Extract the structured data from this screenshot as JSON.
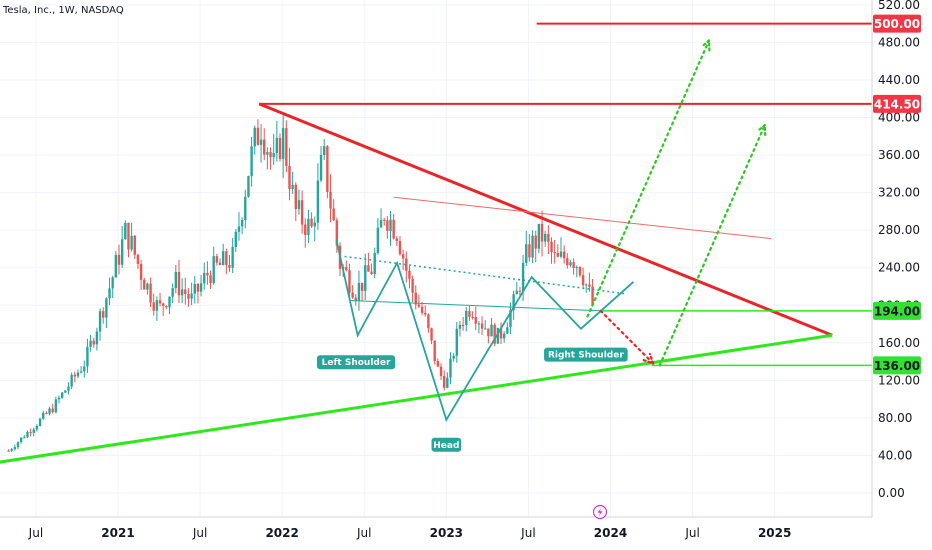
{
  "symbol_title": "Tesla, Inc., 1W, NASDAQ",
  "colors": {
    "up": "#26a69a",
    "down": "#ef5350",
    "trend_red": "#e8262a",
    "trend_green": "#2ee81c",
    "pattern_teal": "#26a69a",
    "dotted_green": "#2ec822",
    "dotted_red": "#e8262a",
    "axis_text": "#131722",
    "grid": "#f0f3fa"
  },
  "chart_data": {
    "type": "candlestick",
    "title": "Tesla, Inc., 1W, NASDAQ",
    "ylim": [
      -20,
      540
    ],
    "y_ticks": [
      "0.00",
      "40.00",
      "80.00",
      "120.00",
      "160.00",
      "200.00",
      "240.00",
      "280.00",
      "320.00",
      "360.00",
      "400.00",
      "440.00",
      "480.00",
      "520.00"
    ],
    "x_ticks": [
      "Jul",
      "2021",
      "Jul",
      "2022",
      "Jul",
      "2023",
      "Jul",
      "2024",
      "Jul",
      "2025"
    ],
    "price_badges": [
      {
        "label": "500.00",
        "value": 500,
        "color": "#e8262a"
      },
      {
        "label": "414.50",
        "value": 414.5,
        "color": "#e8262a"
      },
      {
        "label": "194.00",
        "value": 194,
        "color": "#2ee81c"
      },
      {
        "label": "136.00",
        "value": 136,
        "color": "#2ee81c"
      }
    ],
    "pattern_labels": [
      {
        "text": "Left Shoulder",
        "date": "2022.45",
        "value": 150
      },
      {
        "text": "Head",
        "date": "2023.0",
        "value": 62
      },
      {
        "text": "Right Shoulder",
        "date": "2023.85",
        "value": 158
      }
    ],
    "anchors": [
      {
        "date": 2020.333,
        "close": 45
      },
      {
        "date": 2020.6,
        "close": 90
      },
      {
        "date": 2020.8,
        "close": 140
      },
      {
        "date": 2020.95,
        "close": 220
      },
      {
        "date": 2021.05,
        "close": 280
      },
      {
        "date": 2021.15,
        "close": 230
      },
      {
        "date": 2021.25,
        "close": 195
      },
      {
        "date": 2021.35,
        "close": 225
      },
      {
        "date": 2021.45,
        "close": 205
      },
      {
        "date": 2021.55,
        "close": 235
      },
      {
        "date": 2021.7,
        "close": 250
      },
      {
        "date": 2021.8,
        "close": 350
      },
      {
        "date": 2021.87,
        "close": 395
      },
      {
        "date": 2021.95,
        "close": 345
      },
      {
        "date": 2022.0,
        "close": 385
      },
      {
        "date": 2022.08,
        "close": 300
      },
      {
        "date": 2022.18,
        "close": 280
      },
      {
        "date": 2022.25,
        "close": 360
      },
      {
        "date": 2022.35,
        "close": 245
      },
      {
        "date": 2022.45,
        "close": 215
      },
      {
        "date": 2022.55,
        "close": 240
      },
      {
        "date": 2022.62,
        "close": 300
      },
      {
        "date": 2022.7,
        "close": 280
      },
      {
        "date": 2022.78,
        "close": 220
      },
      {
        "date": 2022.87,
        "close": 185
      },
      {
        "date": 2022.95,
        "close": 130
      },
      {
        "date": 2023.0,
        "close": 115
      },
      {
        "date": 2023.08,
        "close": 180
      },
      {
        "date": 2023.15,
        "close": 200
      },
      {
        "date": 2023.22,
        "close": 180
      },
      {
        "date": 2023.32,
        "close": 165
      },
      {
        "date": 2023.42,
        "close": 205
      },
      {
        "date": 2023.5,
        "close": 260
      },
      {
        "date": 2023.58,
        "close": 275
      },
      {
        "date": 2023.67,
        "close": 245
      },
      {
        "date": 2023.75,
        "close": 255
      },
      {
        "date": 2023.82,
        "close": 240
      },
      {
        "date": 2023.9,
        "close": 195
      }
    ],
    "series": [
      {
        "kind": "trendline",
        "from": {
          "date": 2021.86,
          "value": 414.5
        },
        "to": {
          "date": 2025.35,
          "value": 168
        }
      },
      {
        "kind": "trendline",
        "from": {
          "date": 2020.02,
          "value": 26
        },
        "to": {
          "date": 2025.35,
          "value": 168
        }
      },
      {
        "kind": "horizontal",
        "from_date": 2021.86,
        "value": 414.5
      },
      {
        "kind": "horizontal",
        "from_date": 2023.55,
        "value": 500
      },
      {
        "kind": "horizontal",
        "from_date": 2023.95,
        "value": 194
      },
      {
        "kind": "horizontal",
        "from_date": 2024.25,
        "value": 136
      },
      {
        "kind": "resistance",
        "from": {
          "date": 2022.68,
          "value": 315
        },
        "to": {
          "date": 2024.98,
          "value": 271
        }
      },
      {
        "kind": "neckline_solid",
        "from": {
          "date": 2022.42,
          "value": 205
        },
        "to": {
          "date": 2023.95,
          "value": 194
        }
      },
      {
        "kind": "neckline_dotted",
        "from": {
          "date": 2022.38,
          "value": 252
        },
        "to": {
          "date": 2024.1,
          "value": 212
        }
      },
      {
        "kind": "hs_path",
        "points": [
          [
            2022.33,
            270
          ],
          [
            2022.46,
            168
          ],
          [
            2022.7,
            245
          ],
          [
            2023.0,
            78
          ],
          [
            2023.52,
            230
          ],
          [
            2023.82,
            175
          ],
          [
            2024.14,
            225
          ]
        ]
      },
      {
        "kind": "projection_green",
        "points": [
          [
            2023.86,
            188
          ],
          [
            2024.6,
            482
          ]
        ]
      },
      {
        "kind": "projection_green",
        "points": [
          [
            2024.3,
            136
          ],
          [
            2024.94,
            392
          ]
        ]
      },
      {
        "kind": "projection_red",
        "points": [
          [
            2023.94,
            194
          ],
          [
            2024.26,
            138
          ]
        ]
      }
    ]
  }
}
